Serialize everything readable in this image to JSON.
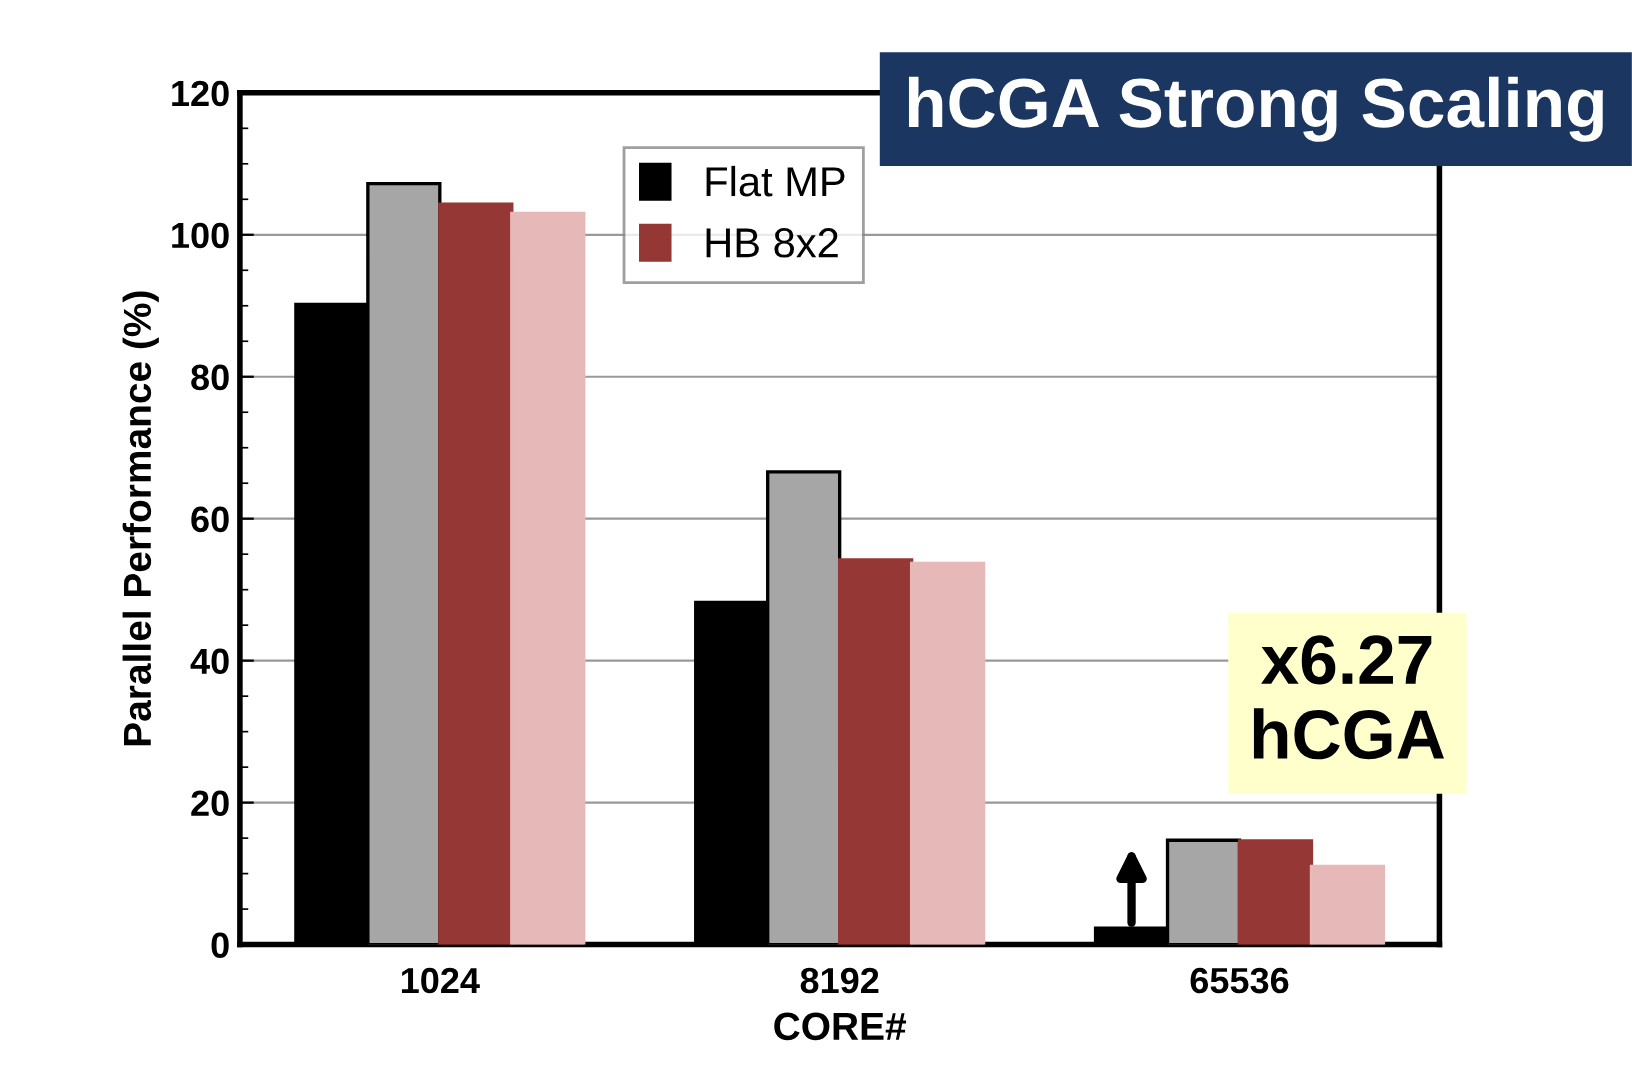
{
  "chart_data": {
    "type": "bar",
    "title": "hCGA Strong Scaling",
    "xlabel": "CORE#",
    "ylabel": "Parallel Performance (%)",
    "categories": [
      "1024",
      "8192",
      "65536"
    ],
    "series": [
      {
        "name": "Flat MP",
        "color": "#000000",
        "values": [
          90.2,
          48.2,
          2.3
        ]
      },
      {
        "color": "#a6a6a6",
        "values": [
          107.2,
          66.6,
          14.7
        ]
      },
      {
        "name": "HB 8x2",
        "color": "#953735",
        "values": [
          104.3,
          54.2,
          14.6
        ]
      },
      {
        "color": "#e6b9b8",
        "values": [
          103.0,
          53.7,
          11.0
        ]
      }
    ],
    "ylim": [
      0,
      120
    ],
    "yticks": [
      0,
      20,
      40,
      60,
      80,
      100,
      120
    ],
    "grid": "y",
    "legend": "top",
    "annotations": [
      "x6.27\nhCGA"
    ]
  }
}
